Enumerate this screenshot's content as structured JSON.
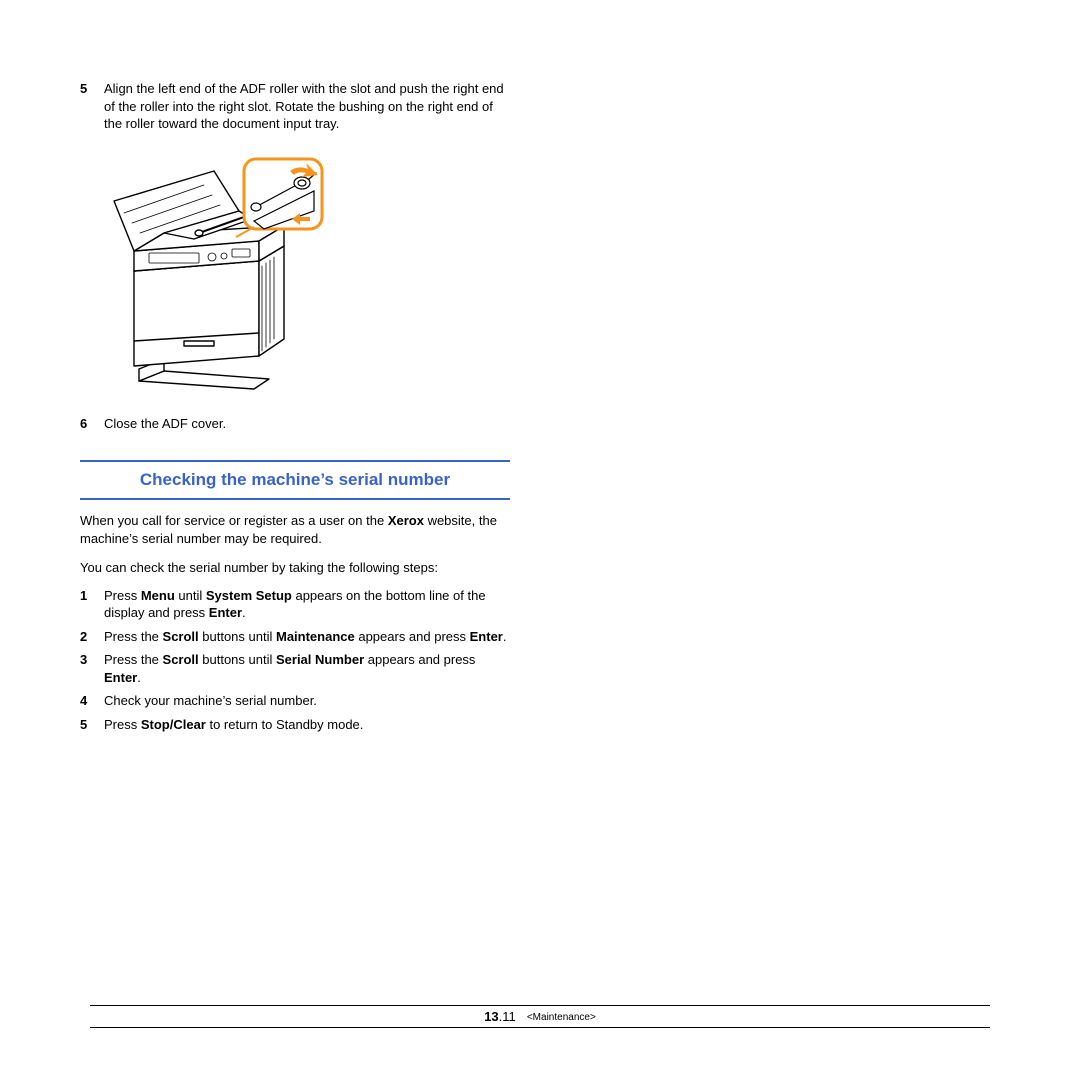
{
  "continued_steps": [
    {
      "num": "5",
      "html": "Align the left end of the ADF roller with the slot and push the right end of the roller into the right slot. Rotate the bushing on the right end of the roller toward the document input tray."
    },
    {
      "num": "6",
      "html": "Close the ADF cover."
    }
  ],
  "section_title": "Checking the machine’s serial number",
  "intro_paragraphs": [
    "When you call for service or register as a user on the <b>Xerox</b> website, the machine’s serial number may be required.",
    "You can check the serial number by taking the following steps:"
  ],
  "serial_steps": [
    {
      "num": "1",
      "html": "Press <b>Menu</b> until <b>System Setup</b> appears on the bottom line of the display and press <b>Enter</b>."
    },
    {
      "num": "2",
      "html": "Press the <b>Scroll</b> buttons until <b>Maintenance</b> appears and press <b>Enter</b>."
    },
    {
      "num": "3",
      "html": "Press the <b>Scroll</b> buttons until <b>Serial Number</b> appears and press <b>Enter</b>."
    },
    {
      "num": "4",
      "html": "Check your machine’s serial number."
    },
    {
      "num": "5",
      "html": "Press <b>Stop/Clear</b> to return to Standby mode."
    }
  ],
  "footer": {
    "chapter": "13",
    "page": ".11",
    "breadcrumb": "<Maintenance>"
  },
  "colors": {
    "accent": "#3a63c8",
    "callout_border": "#f7941d",
    "callout_fill": "#ffffff",
    "arrow_fill": "#f7941d",
    "line": "#000000"
  }
}
